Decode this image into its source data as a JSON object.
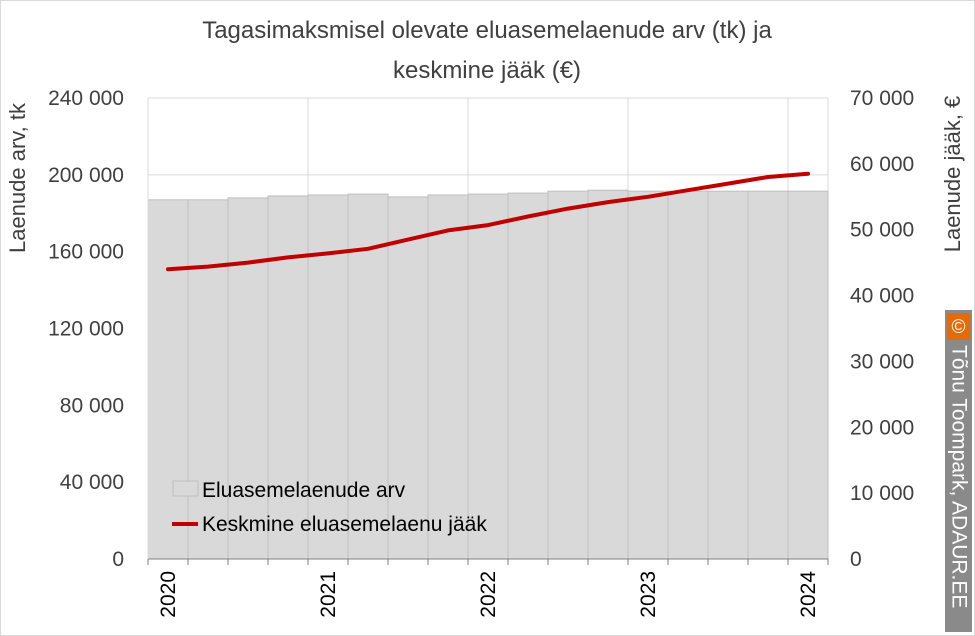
{
  "chart_data": {
    "type": "bar+line",
    "title": "Tagasimaksmisel olevate eluasemelaenude arv (tk) ja keskmine jääk (€)",
    "title_lines": [
      "Tagasimaksmisel olevate eluasemelaenude arv (tk) ja",
      "keskmine jääk (€)"
    ],
    "ylabel_left": "Laenude arv, tk",
    "ylabel_right": "Laenude jääk, €",
    "ylim_left": [
      0,
      240000
    ],
    "ylim_right": [
      0,
      70000
    ],
    "yticks_left": [
      "0",
      "40 000",
      "80 000",
      "120 000",
      "160 000",
      "200 000",
      "240 000"
    ],
    "yticks_right": [
      "0",
      "10 000",
      "20 000",
      "30 000",
      "40 000",
      "50 000",
      "60 000",
      "70 000"
    ],
    "x_labels": [
      "2020",
      "2021",
      "2022",
      "2023",
      "2024"
    ],
    "grid": true,
    "legend_position": "bottom-left",
    "categories": [
      "2020 Q1",
      "2020 Q2",
      "2020 Q3",
      "2020 Q4",
      "2021 Q1",
      "2021 Q2",
      "2021 Q3",
      "2021 Q4",
      "2022 Q1",
      "2022 Q2",
      "2022 Q3",
      "2022 Q4",
      "2023 Q1",
      "2023 Q2",
      "2023 Q3",
      "2023 Q4",
      "2024 Q1"
    ],
    "series": [
      {
        "name": "Eluasemelaenude arv",
        "type": "bar",
        "axis": "left",
        "color": "#d9d9d9",
        "values": [
          187000,
          187000,
          188000,
          189000,
          189500,
          190000,
          188500,
          189500,
          190000,
          190500,
          191500,
          192000,
          191500,
          191500,
          191500,
          191500,
          191500
        ]
      },
      {
        "name": "Keskmine eluasemelaenu jääk",
        "type": "line",
        "axis": "right",
        "color": "#c00000",
        "values": [
          44000,
          44400,
          45000,
          45800,
          46400,
          47100,
          48500,
          49900,
          50700,
          52000,
          53200,
          54200,
          55000,
          56000,
          57000,
          58000,
          58500
        ]
      }
    ]
  },
  "watermark": {
    "symbol": "©",
    "text": "Tõnu Toompark, ADAUR.EE",
    "bg_color": "#8a8a8a",
    "symbol_color": "#e26b0a"
  }
}
